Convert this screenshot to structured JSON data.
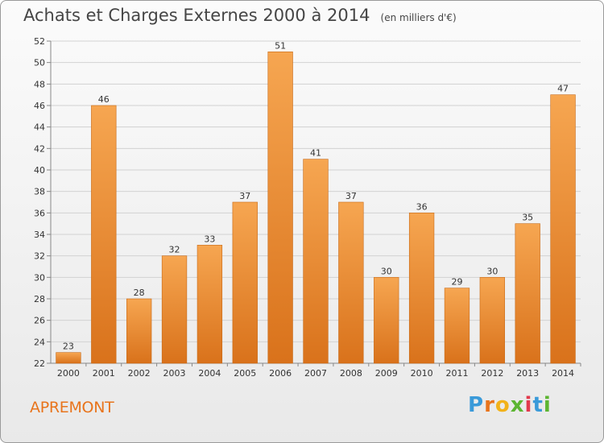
{
  "title": "Achats et Charges Externes 2000 à 2014",
  "subtitle": "(en milliers d'€)",
  "commune": "APREMONT",
  "brand": {
    "letters": [
      "P",
      "r",
      "o",
      "x",
      "i",
      "t",
      "i"
    ],
    "colors": [
      "#3a9ad9",
      "#e8741c",
      "#f2b21a",
      "#5cb531",
      "#e23a4d",
      "#3a9ad9",
      "#5cb531"
    ]
  },
  "colors": {
    "bar": "#f09a3e",
    "bar_dark": "#d9731a",
    "title": "#454545",
    "commune": "#e8741c"
  },
  "chart_data": {
    "type": "bar",
    "categories": [
      "2000",
      "2001",
      "2002",
      "2003",
      "2004",
      "2005",
      "2006",
      "2007",
      "2008",
      "2009",
      "2010",
      "2011",
      "2012",
      "2013",
      "2014"
    ],
    "values": [
      23,
      46,
      28,
      32,
      33,
      37,
      51,
      41,
      37,
      30,
      36,
      29,
      30,
      35,
      47
    ],
    "ylim": [
      22,
      52
    ],
    "yticks": [
      22,
      24,
      26,
      28,
      30,
      32,
      34,
      36,
      38,
      40,
      42,
      44,
      46,
      48,
      50,
      52
    ],
    "grid": true
  }
}
